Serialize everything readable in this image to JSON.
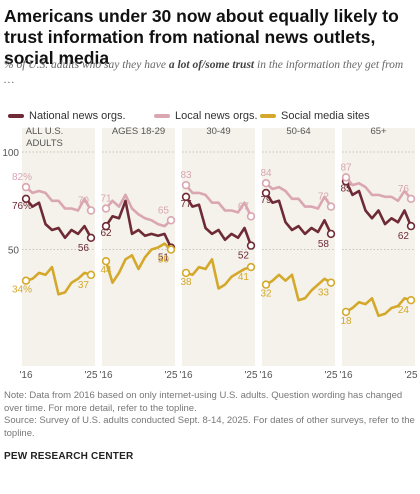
{
  "title": "Americans under 30 now about equally likely to trust information from national news outlets, social media",
  "subtitle_parts": {
    "before": "% of U.S. adults who say they have ",
    "emphasis": "a lot of/some trust",
    "after": " in the information they get from …"
  },
  "colors": {
    "national": "#6e2a35",
    "local": "#d9a6b2",
    "social": "#d4a92b",
    "panel_bg": "#f4f2ea"
  },
  "legend": [
    {
      "label": "National news orgs.",
      "key": "national"
    },
    {
      "label": "Local news orgs.",
      "key": "local"
    },
    {
      "label": "Social media sites",
      "key": "social"
    }
  ],
  "chart_data": {
    "type": "line",
    "y_axis": {
      "ticks": [
        "100",
        "50"
      ],
      "ylim": [
        0,
        100
      ]
    },
    "x_tick_labels": [
      "'16",
      "'25"
    ],
    "x_points": [
      "2016",
      "2017",
      "2018",
      "2019",
      "2020",
      "2021",
      "2022",
      "2023",
      "2024",
      "2025 (early)",
      "2025"
    ],
    "panels": [
      {
        "label": "ALL U.S. ADULTS",
        "series": [
          {
            "key": "national",
            "name": "National news orgs.",
            "values": [
              76,
              72,
              74,
              63,
              60,
              61,
              56,
              60,
              58,
              62,
              56
            ],
            "start_label": "76%",
            "end_label": "56"
          },
          {
            "key": "local",
            "name": "Local news orgs.",
            "values": [
              82,
              79,
              80,
              79,
              75,
              75,
              71,
              71,
              70,
              76,
              70
            ],
            "start_label": "82%",
            "end_label": "70"
          },
          {
            "key": "social",
            "name": "Social media sites",
            "values": [
              34,
              35,
              38,
              37,
              41,
              27,
              28,
              33,
              35,
              38,
              37
            ],
            "start_label": "34%",
            "end_label": "37"
          }
        ]
      },
      {
        "label": "AGES 18-29",
        "series": [
          {
            "key": "national",
            "name": "National news orgs.",
            "values": [
              62,
              67,
              66,
              75,
              58,
              60,
              57,
              58,
              57,
              58,
              51
            ],
            "start_label": "62",
            "end_label": "51"
          },
          {
            "key": "local",
            "name": "Local news orgs.",
            "values": [
              71,
              75,
              72,
              78,
              71,
              68,
              66,
              65,
              63,
              62,
              65
            ],
            "start_label": "71",
            "end_label": "65"
          },
          {
            "key": "social",
            "name": "Social media sites",
            "values": [
              44,
              33,
              38,
              45,
              47,
              40,
              46,
              50,
              51,
              53,
              50
            ],
            "start_label": "44",
            "end_label": "50"
          }
        ]
      },
      {
        "label": "30-49",
        "series": [
          {
            "key": "national",
            "name": "National news orgs.",
            "values": [
              77,
              72,
              73,
              61,
              58,
              60,
              55,
              58,
              56,
              61,
              52
            ],
            "start_label": "77",
            "end_label": "52"
          },
          {
            "key": "local",
            "name": "Local news orgs.",
            "values": [
              83,
              79,
              79,
              78,
              74,
              74,
              70,
              70,
              69,
              74,
              67
            ],
            "start_label": "83",
            "end_label": "67"
          },
          {
            "key": "social",
            "name": "Social media sites",
            "values": [
              38,
              37,
              41,
              40,
              45,
              30,
              32,
              36,
              38,
              40,
              41
            ],
            "start_label": "38",
            "end_label": "41"
          }
        ]
      },
      {
        "label": "50-64",
        "series": [
          {
            "key": "national",
            "name": "National news orgs.",
            "values": [
              79,
              74,
              75,
              64,
              60,
              62,
              58,
              61,
              59,
              65,
              58
            ],
            "start_label": "79",
            "end_label": "58"
          },
          {
            "key": "local",
            "name": "Local news orgs.",
            "values": [
              84,
              81,
              82,
              80,
              76,
              76,
              72,
              72,
              71,
              77,
              72
            ],
            "start_label": "84",
            "end_label": "72"
          },
          {
            "key": "social",
            "name": "Social media sites",
            "values": [
              32,
              34,
              37,
              34,
              37,
              24,
              25,
              29,
              32,
              35,
              33
            ],
            "start_label": "32",
            "end_label": "33"
          }
        ]
      },
      {
        "label": "65+",
        "series": [
          {
            "key": "national",
            "name": "National news orgs.",
            "values": [
              85,
              78,
              80,
              70,
              66,
              70,
              63,
              66,
              64,
              70,
              62
            ],
            "start_label": "85",
            "end_label": "62"
          },
          {
            "key": "local",
            "name": "Local news orgs.",
            "values": [
              87,
              83,
              84,
              82,
              78,
              78,
              77,
              77,
              75,
              80,
              76
            ],
            "start_label": "87",
            "end_label": "76"
          },
          {
            "key": "social",
            "name": "Social media sites",
            "values": [
              18,
              20,
              23,
              22,
              25,
              16,
              17,
              20,
              21,
              25,
              24
            ],
            "start_label": "18",
            "end_label": "24"
          }
        ]
      }
    ]
  },
  "notes": {
    "note": "Note: Data from 2016 based on only internet-using U.S. adults. Question wording has changed over time. For more detail, refer to the topline.",
    "source": "Source: Survey of U.S. adults conducted Sept. 8-14, 2025. For dates of other surveys, refer to the topline."
  },
  "source_org": "PEW RESEARCH CENTER"
}
